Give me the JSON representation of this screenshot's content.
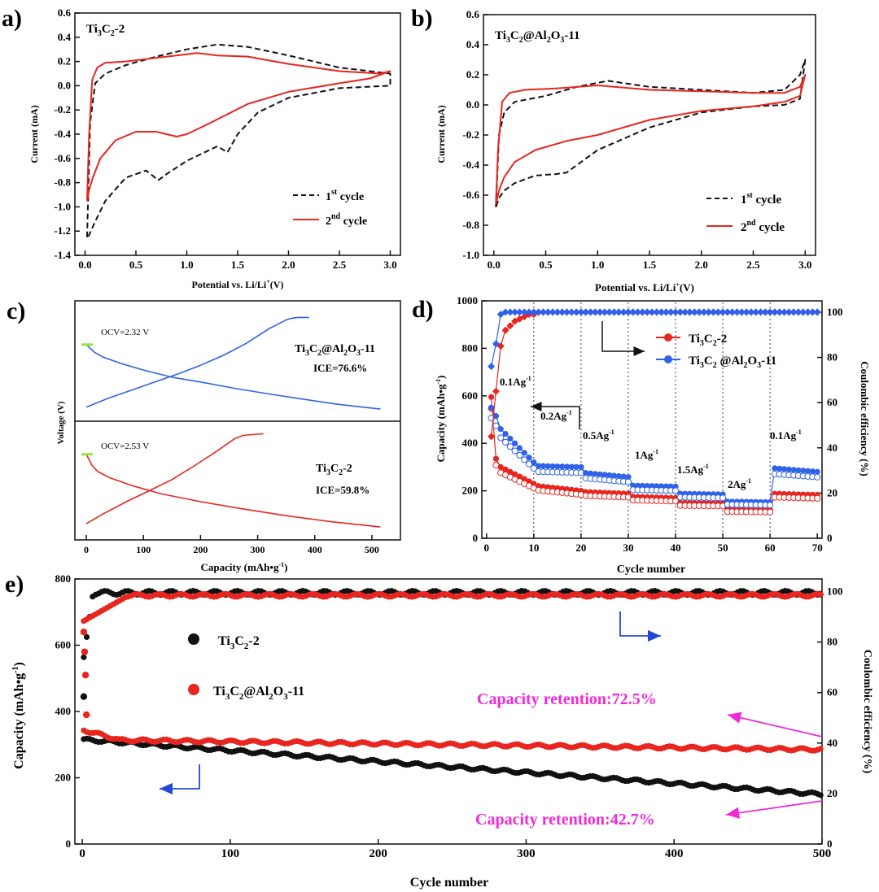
{
  "colors": {
    "black": "#111111",
    "red": "#e8251f",
    "blue": "#2f62e8",
    "magenta": "#ee2bd6",
    "arrow_blue": "#2348d8",
    "green": "#9be43c"
  },
  "chart_data": [
    {
      "panel": "a)",
      "type": "line",
      "title": "Ti3C2-2",
      "xlabel": "Potential vs. Li/Li⁺(V)",
      "ylabel": "Current (mA)",
      "xlim": [
        -0.1,
        3.1
      ],
      "ylim": [
        -1.4,
        0.6
      ],
      "xticks": [
        "0.0",
        "0.5",
        "1.0",
        "1.5",
        "2.0",
        "2.5",
        "3.0"
      ],
      "yticks": [
        "-1.4",
        "-1.2",
        "-1.0",
        "-0.8",
        "-0.6",
        "-0.4",
        "-0.2",
        "0.0",
        "0.2",
        "0.4",
        "0.6"
      ],
      "legend": [
        "1st cycle",
        "2nd cycle"
      ],
      "series": [
        {
          "name": "1st cycle",
          "style": "dashed",
          "color": "black",
          "x": [
            0.02,
            0.05,
            0.1,
            0.2,
            0.4,
            0.7,
            1.0,
            1.3,
            1.6,
            2.0,
            2.5,
            3.0,
            3.0,
            2.5,
            2.0,
            1.7,
            1.5,
            1.4,
            1.3,
            1.0,
            0.8,
            0.72,
            0.6,
            0.4,
            0.2,
            0.1,
            0.03
          ],
          "y": [
            -1.25,
            -0.3,
            0.02,
            0.1,
            0.17,
            0.24,
            0.3,
            0.34,
            0.32,
            0.25,
            0.15,
            0.1,
            0.0,
            -0.02,
            -0.1,
            -0.22,
            -0.4,
            -0.55,
            -0.5,
            -0.62,
            -0.73,
            -0.78,
            -0.7,
            -0.76,
            -0.95,
            -1.12,
            -1.25
          ]
        },
        {
          "name": "2nd cycle",
          "style": "solid",
          "color": "red",
          "x": [
            0.02,
            0.04,
            0.07,
            0.12,
            0.2,
            0.4,
            0.7,
            1.0,
            1.1,
            1.3,
            1.6,
            2.0,
            2.5,
            2.9,
            3.0,
            2.8,
            2.5,
            2.0,
            1.6,
            1.2,
            1.0,
            0.9,
            0.7,
            0.5,
            0.3,
            0.15,
            0.08,
            0.04,
            0.02
          ],
          "y": [
            -0.95,
            -0.4,
            0.05,
            0.15,
            0.19,
            0.2,
            0.23,
            0.26,
            0.27,
            0.25,
            0.24,
            0.18,
            0.12,
            0.1,
            0.12,
            0.06,
            0.02,
            -0.05,
            -0.15,
            -0.32,
            -0.4,
            -0.42,
            -0.38,
            -0.38,
            -0.45,
            -0.6,
            -0.75,
            -0.86,
            -0.95
          ]
        }
      ]
    },
    {
      "panel": "b)",
      "type": "line",
      "title": "Ti3C2@Al2O3-11",
      "xlabel": "Potential vs. Li/Li⁺(V)",
      "ylabel": "Current (mA)",
      "xlim": [
        -0.1,
        3.1
      ],
      "ylim": [
        -1.0,
        0.6
      ],
      "xticks": [
        "0.0",
        "0.5",
        "1.0",
        "1.5",
        "2.0",
        "2.5",
        "3.0"
      ],
      "yticks": [
        "-1.0",
        "-0.8",
        "-0.6",
        "-0.4",
        "-0.2",
        "0.0",
        "0.2",
        "0.4",
        "0.6"
      ],
      "legend": [
        "1st cycle",
        "2nd cycle"
      ],
      "series": [
        {
          "name": "1st cycle",
          "style": "dashed",
          "color": "black",
          "x": [
            0.02,
            0.05,
            0.1,
            0.2,
            0.5,
            0.8,
            1.1,
            1.5,
            2.0,
            2.5,
            2.8,
            2.95,
            3.0,
            2.95,
            2.8,
            2.5,
            2.0,
            1.5,
            1.0,
            0.7,
            0.6,
            0.4,
            0.2,
            0.1,
            0.05,
            0.02
          ],
          "y": [
            -0.68,
            -0.2,
            -0.05,
            0.02,
            0.06,
            0.12,
            0.16,
            0.12,
            0.1,
            0.08,
            0.1,
            0.2,
            0.3,
            0.04,
            0.0,
            -0.01,
            -0.05,
            -0.15,
            -0.3,
            -0.45,
            -0.46,
            -0.47,
            -0.52,
            -0.57,
            -0.62,
            -0.68
          ]
        },
        {
          "name": "2nd cycle",
          "style": "solid",
          "color": "red",
          "x": [
            0.02,
            0.04,
            0.08,
            0.15,
            0.3,
            0.6,
            1.0,
            1.5,
            2.0,
            2.5,
            2.8,
            2.95,
            3.0,
            2.95,
            2.8,
            2.5,
            2.0,
            1.5,
            1.0,
            0.7,
            0.4,
            0.2,
            0.1,
            0.05,
            0.02
          ],
          "y": [
            -0.66,
            -0.3,
            0.02,
            0.08,
            0.1,
            0.11,
            0.13,
            0.1,
            0.09,
            0.08,
            0.08,
            0.12,
            0.2,
            0.06,
            0.02,
            -0.01,
            -0.04,
            -0.1,
            -0.2,
            -0.24,
            -0.3,
            -0.38,
            -0.48,
            -0.57,
            -0.66
          ]
        }
      ]
    },
    {
      "panel": "c)",
      "type": "line",
      "xlabel": "Capacity (mAh•g⁻¹)",
      "ylabel": "Voltage (V)",
      "xlim": [
        -20,
        550
      ],
      "xticks": [
        "0",
        "100",
        "200",
        "300",
        "400",
        "500"
      ],
      "subplots": [
        {
          "name": "Ti3C2@Al2O3-11",
          "ocv_label": "OCV=2.32 V",
          "ice_label": "ICE=76.6%",
          "color": "blue",
          "discharge": {
            "x": [
              0,
              5,
              15,
              30,
              60,
              100,
              150,
              200,
              260,
              320,
              380,
              440,
              515
            ],
            "y": [
              2.32,
              2.25,
              2.12,
              2.0,
              1.85,
              1.68,
              1.5,
              1.38,
              1.22,
              1.08,
              0.95,
              0.82,
              0.7
            ]
          },
          "charge": {
            "x": [
              0,
              40,
              80,
              120,
              160,
              200,
              240,
              280,
              320,
              350,
              360,
              370,
              390
            ],
            "y": [
              0.75,
              0.98,
              1.18,
              1.38,
              1.58,
              1.8,
              2.05,
              2.35,
              2.72,
              2.94,
              2.98,
              3.0,
              3.0
            ]
          }
        },
        {
          "name": "Ti3C2-2",
          "ocv_label": "OCV=2.53 V",
          "ice_label": "ICE=59.8%",
          "color": "red",
          "discharge": {
            "x": [
              0,
              5,
              10,
              20,
              40,
              80,
              130,
              200,
              270,
              350,
              430,
              515
            ],
            "y": [
              2.53,
              2.4,
              2.25,
              2.1,
              1.95,
              1.75,
              1.55,
              1.35,
              1.18,
              1.0,
              0.85,
              0.72
            ]
          },
          "charge": {
            "x": [
              0,
              30,
              70,
              110,
              150,
              190,
              230,
              260,
              275,
              290,
              310
            ],
            "y": [
              0.8,
              1.05,
              1.35,
              1.62,
              1.9,
              2.25,
              2.62,
              2.92,
              3.0,
              3.02,
              3.04
            ]
          }
        }
      ]
    },
    {
      "panel": "d)",
      "type": "scatter",
      "xlabel": "Cycle number",
      "ylabel": "Capacity  (mAh•g⁻¹)",
      "y2label": "Coulombic efficiency (%)",
      "xlim": [
        -1,
        71
      ],
      "ylim": [
        0,
        1000
      ],
      "y2lim": [
        0,
        105
      ],
      "xticks": [
        "0",
        "10",
        "20",
        "30",
        "40",
        "50",
        "60",
        "70"
      ],
      "yticks": [
        "0",
        "200",
        "400",
        "600",
        "800",
        "1000"
      ],
      "y2ticks": [
        "0",
        "20",
        "40",
        "60",
        "80",
        "100"
      ],
      "legend": [
        "Ti3C2-2",
        "Ti3C2 @Al2O3-11"
      ],
      "rate_labels": [
        "0.1Ag⁻¹",
        "0.2Ag⁻¹",
        "0.5Ag⁻¹",
        "1Ag⁻¹",
        "1.5Ag⁻¹",
        "2Ag⁻¹",
        "0.1Ag⁻¹"
      ],
      "segments": [
        {
          "from": 1,
          "to": 1,
          "red": 595,
          "blue": 550
        },
        {
          "from": 2,
          "to": 2,
          "red": 335,
          "blue": 515
        },
        {
          "from": 3,
          "to": 10,
          "red_start": 300,
          "red_end": 230,
          "blue_start": 460,
          "blue_end": 320
        },
        {
          "from": 11,
          "to": 20,
          "red_start": 220,
          "red_end": 200,
          "blue_start": 305,
          "blue_end": 300
        },
        {
          "from": 21,
          "to": 30,
          "red_start": 195,
          "red_end": 188,
          "blue_start": 275,
          "blue_end": 258
        },
        {
          "from": 31,
          "to": 40,
          "red_start": 175,
          "red_end": 170,
          "blue_start": 222,
          "blue_end": 218
        },
        {
          "from": 41,
          "to": 50,
          "red_start": 150,
          "red_end": 148,
          "blue_start": 188,
          "blue_end": 185
        },
        {
          "from": 51,
          "to": 60,
          "red_start": 122,
          "red_end": 120,
          "blue_start": 155,
          "blue_end": 152
        },
        {
          "from": 61,
          "to": 70,
          "red_start": 188,
          "red_end": 183,
          "blue_start": 295,
          "blue_end": 280
        }
      ],
      "ce_red": [
        45,
        65,
        85,
        92,
        94,
        96,
        97,
        98,
        99,
        99
      ],
      "ce_blue": [
        76,
        86,
        99,
        100
      ]
    },
    {
      "panel": "e)",
      "type": "scatter",
      "xlabel": "Cycle number",
      "ylabel": "Capacity  (mAh•g⁻¹)",
      "y2label": "Coulombic efficiency (%)",
      "xlim": [
        -5,
        500
      ],
      "ylim": [
        0,
        800
      ],
      "y2lim": [
        0,
        105
      ],
      "xticks": [
        "0",
        "100",
        "200",
        "300",
        "400",
        "500"
      ],
      "yticks": [
        "0",
        "200",
        "400",
        "600",
        "800"
      ],
      "y2ticks": [
        "0",
        "20",
        "40",
        "60",
        "80",
        "100"
      ],
      "legend": [
        "Ti3C2-2",
        "Ti3C2@Al2O3-11"
      ],
      "annotations": [
        "Capacity retention:72.5%",
        "Capacity retention:42.7%"
      ],
      "series": [
        {
          "name": "Ti3C2-2 capacity",
          "color": "black",
          "start": 315,
          "end": 150
        },
        {
          "name": "Ti3C2@Al2O3-11 capacity",
          "color": "red",
          "start": 330,
          "end": 285
        },
        {
          "name": "Ti3C2-2 CE",
          "color": "black",
          "plateau": 99.5
        },
        {
          "name": "Ti3C2@Al2O3-11 CE",
          "color": "red",
          "plateau": 98.5
        }
      ],
      "first_points": {
        "red_capacity": [
          640,
          580,
          510,
          390
        ],
        "black_capacity": [
          445
        ]
      }
    }
  ],
  "labels": {
    "a": {
      "panel": "a)",
      "title_main": "Ti",
      "t1": "3",
      "t2": "C",
      "t3": "2",
      "t4": "-2",
      "ylabel": "Current (mA)",
      "xlabel_main": "Potential vs. Li/Li",
      "xlabel_sup": "+",
      "xlabel_end": "(V)",
      "leg1": "1",
      "leg1_sup": "st",
      "leg1_end": " cycle",
      "leg2": "2",
      "leg2_sup": "nd",
      "leg2_end": " cycle"
    },
    "b": {
      "panel": "b)",
      "ylabel": "Current (mA)",
      "xlabel_main": "Potential vs. Li/Li",
      "xlabel_sup": "+",
      "xlabel_end": "(V)",
      "leg1": "1",
      "leg1_sup": "st",
      "leg1_end": " cycle",
      "leg2": "2",
      "leg2_sup": "nd",
      "leg2_end": " cycle"
    },
    "c": {
      "panel": "c)",
      "ylabel": "Voltage (V)",
      "xlabel_main": "Capacity (mAh•g",
      "xlabel_sup": "-1",
      "xlabel_end": ")"
    },
    "d": {
      "panel": "d)",
      "ylabel": "Capacity  (mAh•g",
      "ylabel_sup": "-1",
      "ylabel_end": ")",
      "y2label": "Coulombic efficiency (%)",
      "xlabel": "Cycle number"
    },
    "e": {
      "panel": "e)",
      "ylabel": "Capacity  (mAh•g",
      "ylabel_sup": "-1",
      "ylabel_end": ")",
      "y2label": "Coulombic efficiency (%)",
      "xlabel": "Cycle number"
    }
  }
}
